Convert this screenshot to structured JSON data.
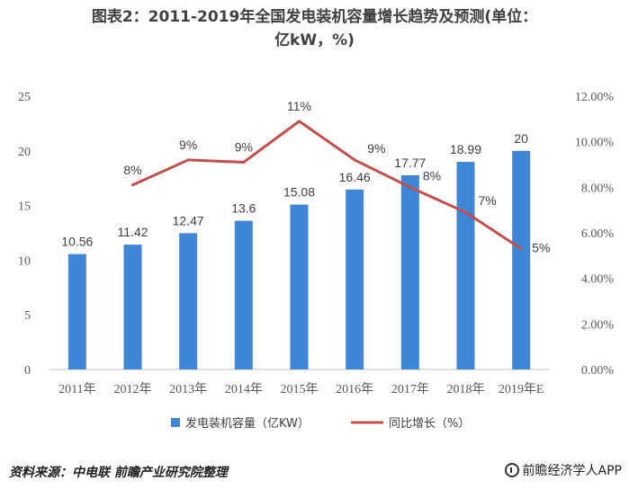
{
  "title": {
    "line1": "图表2：2011-2019年全国发电装机容量增长趋势及预测(单位：",
    "line2": "亿kW，%)"
  },
  "source": "资料来源：中电联 前瞻产业研究院整理",
  "brand": "前瞻经济学人APP",
  "colors": {
    "bar": "#3f86d6",
    "line": "#c0504d"
  },
  "chart_data": {
    "type": "bar+line",
    "title": "2011-2019年全国发电装机容量增长趋势及预测(单位：亿kW，%)",
    "categories": [
      "2011年",
      "2012年",
      "2013年",
      "2014年",
      "2015年",
      "2016年",
      "2017年",
      "2018年",
      "2019年E"
    ],
    "series": [
      {
        "name": "发电装机容量（亿KW）",
        "type": "bar",
        "axis": "left",
        "values": [
          10.56,
          11.42,
          12.47,
          13.6,
          15.08,
          16.46,
          17.77,
          18.99,
          20
        ],
        "labels": [
          "10.56",
          "11.42",
          "12.47",
          "13.6",
          "15.08",
          "16.46",
          "17.77",
          "18.99",
          "20"
        ]
      },
      {
        "name": "同比增长（%）",
        "type": "line",
        "axis": "right",
        "values": [
          null,
          8.1,
          9.2,
          9.1,
          10.9,
          9.2,
          8.0,
          6.9,
          5.3
        ],
        "labels": [
          "",
          "8%",
          "9%",
          "9%",
          "11%",
          "9%",
          "8%",
          "7%",
          "5%"
        ]
      }
    ],
    "y_left": {
      "range": [
        0,
        25
      ],
      "ticks": [
        "0",
        "5",
        "10",
        "15",
        "20",
        "25"
      ]
    },
    "y_right": {
      "range": [
        0,
        12
      ],
      "ticks": [
        "0.00%",
        "2.00%",
        "4.00%",
        "6.00%",
        "8.00%",
        "10.00%",
        "12.00%"
      ]
    },
    "legend": [
      "发电装机容量（亿KW）",
      "同比增长（%）"
    ],
    "legend_position": "bottom",
    "grid": false
  }
}
